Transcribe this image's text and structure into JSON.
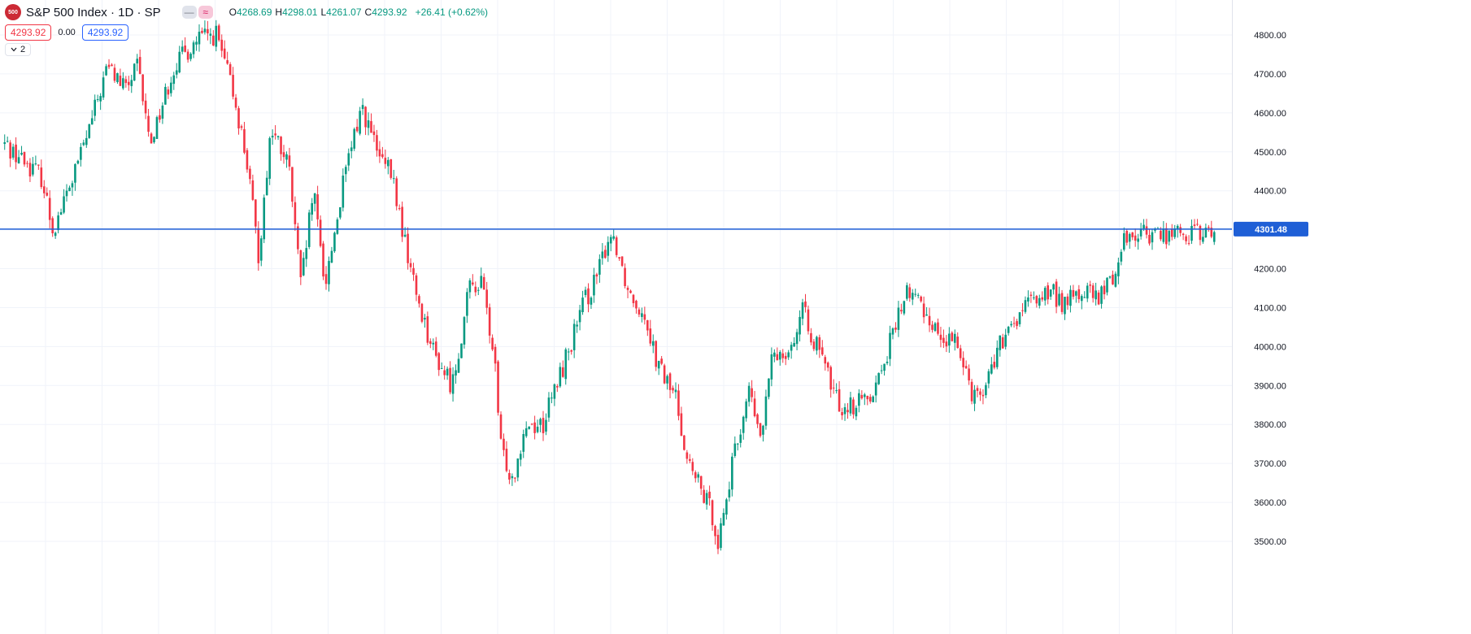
{
  "header": {
    "logo_text": "500",
    "symbol": "S&P 500 Index · 1D · SP",
    "toggle_dash": "—",
    "toggle_approx": "≈",
    "ohlc": {
      "o_label": "O",
      "o_value": "4268.69",
      "h_label": "H",
      "h_value": "4298.01",
      "l_label": "L",
      "l_value": "4261.07",
      "c_label": "C",
      "c_value": "4293.92",
      "change": "+26.41 (+0.62%)"
    }
  },
  "price_row": {
    "bid": "4293.92",
    "spread": "0.00",
    "ask": "4293.92"
  },
  "indicators_toggle": {
    "count": "2"
  },
  "colors": {
    "up": "#089981",
    "down": "#f23645",
    "hline": "#1f5fd6",
    "grid": "#f0f3fa",
    "text": "#131722"
  },
  "chart_data": {
    "type": "candlestick",
    "title": "S&P 500 Index · 1D · SP",
    "xlabel": "",
    "ylabel": "",
    "ylim": [
      3480,
      4850
    ],
    "y_ticks": [
      "4800.00",
      "4700.00",
      "4600.00",
      "4500.00",
      "4400.00",
      "4300.00",
      "4200.00",
      "4100.00",
      "4000.00",
      "3900.00",
      "3800.00",
      "3700.00",
      "3600.00",
      "3500.00"
    ],
    "horizontal_line": {
      "value": 4301.48,
      "label": "4301.48"
    },
    "grid": true,
    "last_bar": {
      "open": 4268.69,
      "high": 4298.01,
      "low": 4261.07,
      "close": 4293.92
    },
    "path_anchors": [
      [
        0,
        4520
      ],
      [
        0.03,
        4440
      ],
      [
        0.04,
        4300
      ],
      [
        0.055,
        4420
      ],
      [
        0.07,
        4560
      ],
      [
        0.085,
        4720
      ],
      [
        0.1,
        4660
      ],
      [
        0.11,
        4720
      ],
      [
        0.12,
        4520
      ],
      [
        0.14,
        4720
      ],
      [
        0.16,
        4790
      ],
      [
        0.175,
        4800
      ],
      [
        0.19,
        4640
      ],
      [
        0.2,
        4480
      ],
      [
        0.21,
        4230
      ],
      [
        0.22,
        4560
      ],
      [
        0.235,
        4460
      ],
      [
        0.245,
        4150
      ],
      [
        0.255,
        4400
      ],
      [
        0.265,
        4160
      ],
      [
        0.28,
        4420
      ],
      [
        0.295,
        4620
      ],
      [
        0.31,
        4480
      ],
      [
        0.32,
        4440
      ],
      [
        0.33,
        4280
      ],
      [
        0.34,
        4140
      ],
      [
        0.355,
        3980
      ],
      [
        0.37,
        3900
      ],
      [
        0.385,
        4160
      ],
      [
        0.395,
        4160
      ],
      [
        0.405,
        3960
      ],
      [
        0.41,
        3740
      ],
      [
        0.42,
        3660
      ],
      [
        0.43,
        3800
      ],
      [
        0.445,
        3800
      ],
      [
        0.465,
        3980
      ],
      [
        0.48,
        4120
      ],
      [
        0.49,
        4180
      ],
      [
        0.5,
        4290
      ],
      [
        0.505,
        4270
      ],
      [
        0.515,
        4150
      ],
      [
        0.53,
        4080
      ],
      [
        0.54,
        3950
      ],
      [
        0.555,
        3870
      ],
      [
        0.565,
        3700
      ],
      [
        0.585,
        3570
      ],
      [
        0.59,
        3500
      ],
      [
        0.6,
        3670
      ],
      [
        0.615,
        3890
      ],
      [
        0.625,
        3760
      ],
      [
        0.635,
        3980
      ],
      [
        0.65,
        4000
      ],
      [
        0.66,
        4090
      ],
      [
        0.675,
        3970
      ],
      [
        0.69,
        3850
      ],
      [
        0.705,
        3850
      ],
      [
        0.72,
        3900
      ],
      [
        0.73,
        3990
      ],
      [
        0.745,
        4140
      ],
      [
        0.755,
        4120
      ],
      [
        0.765,
        4070
      ],
      [
        0.775,
        4020
      ],
      [
        0.79,
        4000
      ],
      [
        0.8,
        3880
      ],
      [
        0.81,
        3890
      ],
      [
        0.82,
        3990
      ],
      [
        0.83,
        4030
      ],
      [
        0.84,
        4090
      ],
      [
        0.855,
        4130
      ],
      [
        0.865,
        4140
      ],
      [
        0.875,
        4110
      ],
      [
        0.885,
        4130
      ],
      [
        0.895,
        4140
      ],
      [
        0.905,
        4120
      ],
      [
        0.915,
        4180
      ],
      [
        0.92,
        4200
      ],
      [
        0.925,
        4280
      ],
      [
        0.93,
        4290
      ]
    ]
  }
}
